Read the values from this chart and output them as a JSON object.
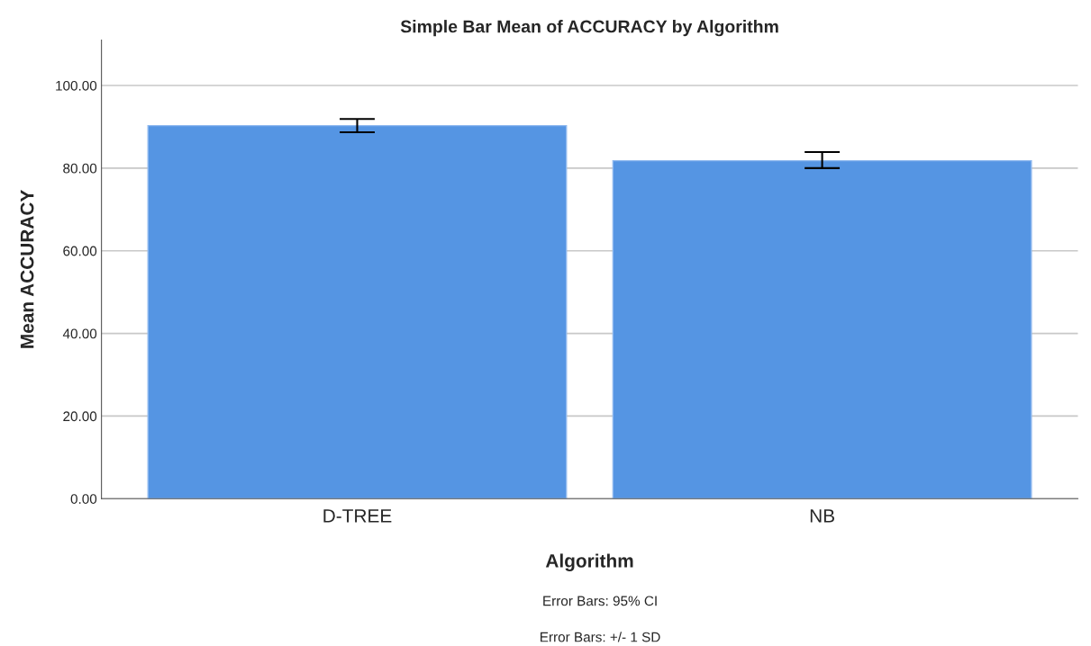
{
  "chart_data": {
    "type": "bar",
    "title": "Simple Bar Mean of ACCURACY by Algorithm",
    "xlabel": "Algorithm",
    "ylabel": "Mean ACCURACY",
    "categories": [
      "D-TREE",
      "NB"
    ],
    "values": [
      90.3,
      81.8
    ],
    "color": "#5595e3",
    "errors": [
      [
        88.7,
        91.9
      ],
      [
        80.0,
        83.9
      ]
    ],
    "ylim": [
      0,
      111
    ],
    "yticks": [
      {
        "value": 0,
        "label": "0.00"
      },
      {
        "value": 20,
        "label": "20.00"
      },
      {
        "value": 40,
        "label": "40.00"
      },
      {
        "value": 60,
        "label": "60.00"
      },
      {
        "value": 80,
        "label": "80.00"
      },
      {
        "value": 100,
        "label": "100.00"
      }
    ],
    "grid": "y",
    "legend": false,
    "annotations": [
      "Error Bars: 95% CI",
      "Error Bars: +/- 1 SD"
    ]
  }
}
